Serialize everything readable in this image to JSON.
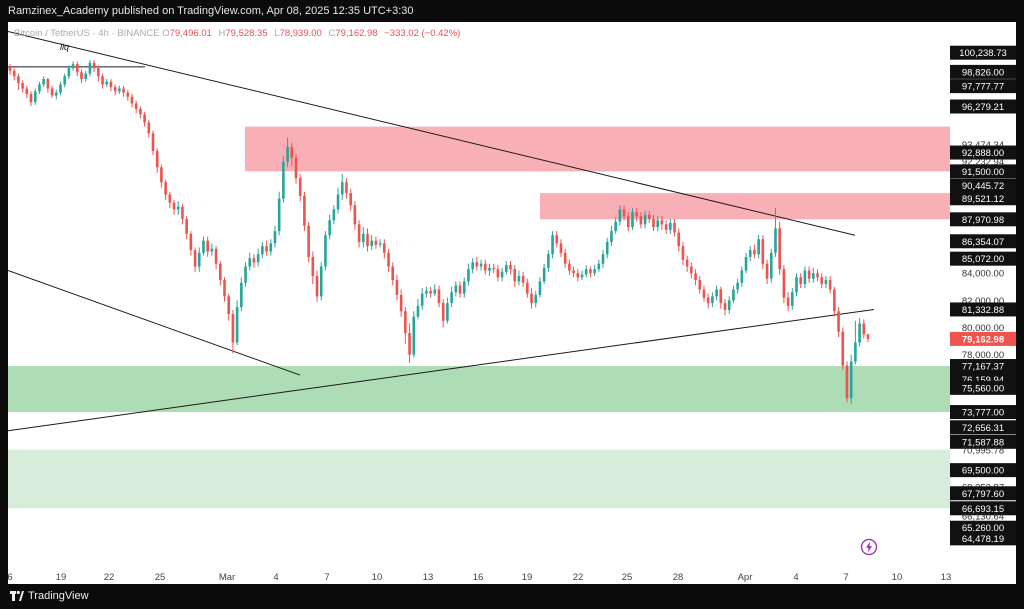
{
  "publisher_line": "Ramzinex_Academy published on TradingView.com, Apr 08, 2025 12:35 UTC+3:30",
  "symbol": {
    "name": "Bitcoin / TetherUS · 4h · BINANCE",
    "open_label": "O",
    "open": "79,496.01",
    "high_label": "H",
    "high": "79,528.35",
    "low_label": "L",
    "low": "78,939.00",
    "close_label": "C",
    "close": "79,162.98",
    "change": "−333.02 (−0.42%)"
  },
  "annotation_label": "liq",
  "brand": "TradingView",
  "icons": {
    "logo": "tradingview-logo-icon",
    "bolt": "lightning-bolt-icon"
  },
  "colors": {
    "up": "#26a69a",
    "down": "#ef5350",
    "supply_zone": "#f7a9b0",
    "demand_zone": "#a6d9af",
    "demand_zone_light": "#d4ecd6",
    "current_price_tag": "#ef5350",
    "axis_tag": "#111111"
  },
  "chart_data": {
    "type": "candlestick",
    "symbol": "BTCUSDT",
    "timeframe": "4h",
    "exchange": "BINANCE",
    "x_ticks": [
      "6",
      "19",
      "22",
      "25",
      "Mar",
      "4",
      "7",
      "10",
      "13",
      "16",
      "19",
      "22",
      "25",
      "28",
      "Apr",
      "4",
      "7",
      "10",
      "13"
    ],
    "y_ticks": [
      "100,238.73",
      "98,826.00",
      "97,777.77",
      "96,279.21",
      "93,474.34",
      "92,888.00",
      "92,232.94",
      "91,500.00",
      "90,445.72",
      "89,521.12",
      "87,970.98",
      "86,354.07",
      "85,072.00",
      "84,000.00",
      "82,000.00",
      "81,332.88",
      "80,000.00",
      "79,162.98",
      "78,000.00",
      "77,167.37",
      "76,159.94",
      "75,560.00",
      "73,777.00",
      "72,656.31",
      "71,587.88",
      "70,995.78",
      "69,500.00",
      "68,252.87",
      "67,797.60",
      "66,693.15",
      "66,130.64",
      "65,260.00",
      "64,478.19"
    ],
    "tagged_levels": [
      100238.73,
      98826.0,
      97777.77,
      96279.21,
      92888.0,
      91500.0,
      90445.72,
      89521.12,
      87970.98,
      86354.07,
      85072.0,
      81332.88,
      77167.37,
      76159.94,
      75560.0,
      73777.0,
      72656.31,
      71587.88,
      69500.0,
      67797.6,
      66693.15,
      65260.0,
      64478.19
    ],
    "current_price": 79162.98,
    "ylim": [
      62000,
      102500
    ],
    "zones": [
      {
        "kind": "supply",
        "from": 91500,
        "to": 94800
      },
      {
        "kind": "supply",
        "from": 87970.98,
        "to": 89900
      },
      {
        "kind": "demand",
        "from": 73777,
        "to": 77167.37
      },
      {
        "kind": "demand-light",
        "from": 66693.15,
        "to": 70995.78
      }
    ],
    "trendlines": [
      {
        "x1": 0,
        "y1": 101800,
        "x2": 847,
        "y2": 86800
      },
      {
        "x1": 0,
        "y1": 84200,
        "x2": 292,
        "y2": 76500
      },
      {
        "x1": 0,
        "y1": 72400,
        "x2": 866,
        "y2": 81332.88
      }
    ],
    "annotation_line": {
      "x1": 0,
      "x2": 137,
      "y": 99200
    },
    "candles": [
      [
        99200,
        98900,
        99400,
        98600
      ],
      [
        98900,
        98500,
        99100,
        98200
      ],
      [
        98500,
        98000,
        98700,
        97500
      ],
      [
        98000,
        97600,
        98200,
        97300
      ],
      [
        97600,
        97200,
        97800,
        96900
      ],
      [
        97200,
        96600,
        97400,
        96300
      ],
      [
        96600,
        97400,
        97600,
        96400
      ],
      [
        97400,
        97900,
        98100,
        97200
      ],
      [
        97900,
        98300,
        98500,
        97700
      ],
      [
        98300,
        97600,
        98400,
        97300
      ],
      [
        97600,
        97100,
        97800,
        96900
      ],
      [
        97100,
        97300,
        97500,
        96800
      ],
      [
        97300,
        97900,
        98100,
        97100
      ],
      [
        97900,
        98500,
        98700,
        97700
      ],
      [
        98500,
        99100,
        99300,
        98300
      ],
      [
        99100,
        99400,
        99600,
        98900
      ],
      [
        99400,
        98800,
        99600,
        98500
      ],
      [
        98800,
        98300,
        99000,
        98000
      ],
      [
        98300,
        98700,
        98900,
        98100
      ],
      [
        98700,
        99500,
        99700,
        98500
      ],
      [
        99500,
        99100,
        99700,
        98800
      ],
      [
        99100,
        98500,
        99300,
        98100
      ],
      [
        98500,
        97900,
        98700,
        97600
      ],
      [
        97900,
        98100,
        98300,
        97700
      ],
      [
        98100,
        97700,
        98300,
        97400
      ],
      [
        97700,
        97400,
        97900,
        97100
      ],
      [
        97400,
        97600,
        97800,
        97200
      ],
      [
        97600,
        97300,
        97800,
        97000
      ],
      [
        97300,
        97000,
        97500,
        96700
      ],
      [
        97000,
        96500,
        97200,
        96200
      ],
      [
        96500,
        96100,
        96700,
        95800
      ],
      [
        96100,
        95700,
        96300,
        95400
      ],
      [
        95700,
        95100,
        95900,
        94800
      ],
      [
        95100,
        94300,
        95300,
        94000
      ],
      [
        94300,
        93000,
        94500,
        92700
      ],
      [
        93000,
        91800,
        93200,
        91400
      ],
      [
        91800,
        90700,
        92000,
        90300
      ],
      [
        90700,
        89800,
        90900,
        89400
      ],
      [
        89800,
        89200,
        90000,
        88800
      ],
      [
        89200,
        88700,
        89400,
        88300
      ],
      [
        88700,
        88900,
        89300,
        88300
      ],
      [
        88900,
        88000,
        89100,
        87600
      ],
      [
        88000,
        86900,
        88200,
        86500
      ],
      [
        86900,
        85700,
        87100,
        85300
      ],
      [
        85700,
        84500,
        85900,
        84100
      ],
      [
        84500,
        85500,
        85900,
        84100
      ],
      [
        85500,
        86400,
        86700,
        85300
      ],
      [
        86400,
        85600,
        86700,
        85200
      ],
      [
        85600,
        85800,
        86200,
        85300
      ],
      [
        85800,
        84700,
        86000,
        84300
      ],
      [
        84700,
        83500,
        84900,
        83100
      ],
      [
        83500,
        82300,
        83700,
        81900
      ],
      [
        82300,
        81000,
        82500,
        80500
      ],
      [
        81000,
        78900,
        81300,
        78100
      ],
      [
        78900,
        81500,
        82000,
        78700
      ],
      [
        81500,
        83300,
        83700,
        81200
      ],
      [
        83300,
        84500,
        84800,
        83000
      ],
      [
        84500,
        85100,
        85500,
        84200
      ],
      [
        85100,
        84800,
        85400,
        84400
      ],
      [
        84800,
        85400,
        85800,
        84500
      ],
      [
        85400,
        86000,
        86300,
        85100
      ],
      [
        86000,
        85600,
        86400,
        85300
      ],
      [
        85600,
        86200,
        86500,
        85300
      ],
      [
        86200,
        87100,
        87500,
        85900
      ],
      [
        87100,
        89500,
        90000,
        86800
      ],
      [
        89500,
        92200,
        92600,
        89200
      ],
      [
        92200,
        93300,
        94000,
        91800
      ],
      [
        93300,
        92500,
        93600,
        91900
      ],
      [
        92500,
        91000,
        92800,
        90600
      ],
      [
        91000,
        89700,
        91300,
        89300
      ],
      [
        89700,
        87500,
        90000,
        87100
      ],
      [
        87500,
        85200,
        87800,
        84800
      ],
      [
        85200,
        83800,
        85600,
        83200
      ],
      [
        83800,
        82300,
        84200,
        81900
      ],
      [
        82300,
        84500,
        84800,
        82000
      ],
      [
        84500,
        86800,
        87100,
        84200
      ],
      [
        86800,
        87900,
        88300,
        86500
      ],
      [
        87900,
        88700,
        89000,
        87600
      ],
      [
        88700,
        89800,
        90300,
        88400
      ],
      [
        89800,
        90700,
        91300,
        89400
      ],
      [
        90700,
        89900,
        91000,
        89500
      ],
      [
        89900,
        89000,
        90200,
        88600
      ],
      [
        89000,
        87600,
        89300,
        87200
      ],
      [
        87600,
        86300,
        87900,
        85900
      ],
      [
        86300,
        86900,
        87400,
        85900
      ],
      [
        86900,
        86000,
        87300,
        85600
      ],
      [
        86000,
        86400,
        86800,
        85700
      ],
      [
        86400,
        86100,
        86700,
        85800
      ],
      [
        86100,
        86200,
        86500,
        85900
      ],
      [
        86200,
        85500,
        86500,
        85100
      ],
      [
        85500,
        84500,
        85800,
        84100
      ],
      [
        84500,
        83500,
        84800,
        83100
      ],
      [
        83500,
        82400,
        83900,
        82000
      ],
      [
        82400,
        81200,
        82800,
        80800
      ],
      [
        81200,
        79600,
        81500,
        78800
      ],
      [
        79600,
        78000,
        80300,
        77400
      ],
      [
        78000,
        80800,
        81200,
        77800
      ],
      [
        80800,
        81600,
        82100,
        80600
      ],
      [
        81600,
        82500,
        82900,
        81300
      ],
      [
        82500,
        82700,
        83000,
        82200
      ],
      [
        82700,
        82500,
        83000,
        82200
      ],
      [
        82500,
        82800,
        83200,
        82300
      ],
      [
        82800,
        81800,
        83100,
        81500
      ],
      [
        81800,
        80500,
        82100,
        80000
      ],
      [
        80500,
        81800,
        82200,
        80300
      ],
      [
        81800,
        82600,
        83000,
        81500
      ],
      [
        82600,
        83100,
        83400,
        82300
      ],
      [
        83100,
        82500,
        83400,
        82200
      ],
      [
        82500,
        83400,
        83700,
        82200
      ],
      [
        83400,
        84300,
        84700,
        83100
      ],
      [
        84300,
        84800,
        85100,
        84000
      ],
      [
        84800,
        84500,
        85200,
        84200
      ],
      [
        84500,
        84700,
        85000,
        84200
      ],
      [
        84700,
        84200,
        85000,
        83900
      ],
      [
        84200,
        84400,
        84700,
        83800
      ],
      [
        84400,
        84300,
        84700,
        84000
      ],
      [
        84300,
        83700,
        84600,
        83400
      ],
      [
        83700,
        84100,
        84400,
        83400
      ],
      [
        84100,
        84600,
        84900,
        83900
      ],
      [
        84600,
        84300,
        84900,
        83900
      ],
      [
        84300,
        83400,
        84600,
        83000
      ],
      [
        83400,
        83800,
        84200,
        83100
      ],
      [
        83800,
        83300,
        84100,
        83000
      ],
      [
        83300,
        82500,
        83600,
        82200
      ],
      [
        82500,
        81800,
        82900,
        81400
      ],
      [
        81800,
        82400,
        82700,
        81500
      ],
      [
        82400,
        83400,
        83700,
        82200
      ],
      [
        83400,
        84400,
        84700,
        83200
      ],
      [
        84400,
        85400,
        85700,
        84100
      ],
      [
        85400,
        86800,
        87100,
        85100
      ],
      [
        86800,
        86200,
        87100,
        85900
      ],
      [
        86200,
        85500,
        86500,
        85200
      ],
      [
        85500,
        84700,
        85800,
        84400
      ],
      [
        84700,
        84200,
        85000,
        83900
      ],
      [
        84200,
        84000,
        84500,
        83700
      ],
      [
        84000,
        83700,
        84300,
        83400
      ],
      [
        83700,
        83900,
        84200,
        83500
      ],
      [
        83900,
        84300,
        84600,
        83700
      ],
      [
        84300,
        84000,
        84500,
        83700
      ],
      [
        84000,
        84300,
        84600,
        83800
      ],
      [
        84300,
        84700,
        85000,
        84100
      ],
      [
        84700,
        85400,
        85700,
        84400
      ],
      [
        85400,
        86300,
        86600,
        85100
      ],
      [
        86300,
        87100,
        87500,
        86000
      ],
      [
        87100,
        87800,
        88100,
        86900
      ],
      [
        87800,
        88700,
        89000,
        87500
      ],
      [
        88700,
        88200,
        89000,
        87900
      ],
      [
        88200,
        87400,
        88500,
        87100
      ],
      [
        87400,
        88500,
        88800,
        87200
      ],
      [
        88500,
        88200,
        88800,
        87800
      ],
      [
        88200,
        87600,
        88500,
        87300
      ],
      [
        87600,
        88300,
        88600,
        87300
      ],
      [
        88300,
        88000,
        88600,
        87700
      ],
      [
        88000,
        87400,
        88300,
        87100
      ],
      [
        87400,
        87900,
        88200,
        87100
      ],
      [
        87900,
        87600,
        88200,
        87200
      ],
      [
        87600,
        87200,
        87900,
        86900
      ],
      [
        87200,
        87700,
        88000,
        86900
      ],
      [
        87700,
        87000,
        88000,
        86700
      ],
      [
        87000,
        86000,
        87300,
        85600
      ],
      [
        86000,
        85000,
        86300,
        84600
      ],
      [
        85000,
        84500,
        85300,
        84100
      ],
      [
        84500,
        84000,
        84800,
        83600
      ],
      [
        84000,
        83500,
        84300,
        83100
      ],
      [
        83500,
        82800,
        83800,
        82500
      ],
      [
        82800,
        82200,
        83100,
        81900
      ],
      [
        82200,
        81800,
        82500,
        81400
      ],
      [
        81800,
        82300,
        82600,
        81500
      ],
      [
        82300,
        82800,
        83100,
        82000
      ],
      [
        82800,
        81800,
        83000,
        81400
      ],
      [
        81800,
        81300,
        82100,
        80900
      ],
      [
        81300,
        82000,
        82300,
        81000
      ],
      [
        82000,
        82800,
        83100,
        81800
      ],
      [
        82800,
        83300,
        83600,
        82500
      ],
      [
        83300,
        84200,
        84500,
        83000
      ],
      [
        84200,
        85200,
        85500,
        84000
      ],
      [
        85200,
        85700,
        86000,
        84900
      ],
      [
        85700,
        85400,
        86100,
        85100
      ],
      [
        85400,
        86500,
        86800,
        85100
      ],
      [
        86500,
        84700,
        86800,
        84300
      ],
      [
        84700,
        83600,
        85000,
        83200
      ],
      [
        83600,
        85500,
        85800,
        83300
      ],
      [
        85500,
        87300,
        88800,
        85200
      ],
      [
        87300,
        84300,
        87800,
        83900
      ],
      [
        84300,
        82200,
        84600,
        81800
      ],
      [
        82200,
        81600,
        82600,
        81200
      ],
      [
        81600,
        82600,
        82900,
        81300
      ],
      [
        82600,
        83700,
        84000,
        82300
      ],
      [
        83700,
        83200,
        84000,
        82900
      ],
      [
        83200,
        84200,
        84500,
        82900
      ],
      [
        84200,
        83600,
        84500,
        83300
      ],
      [
        83600,
        84000,
        84400,
        83300
      ],
      [
        84000,
        83700,
        84300,
        83400
      ],
      [
        83700,
        83200,
        84000,
        82900
      ],
      [
        83200,
        83500,
        83800,
        82900
      ],
      [
        83500,
        82800,
        83800,
        82500
      ],
      [
        82800,
        81200,
        83000,
        80800
      ],
      [
        81200,
        79700,
        81500,
        79300
      ],
      [
        79700,
        77200,
        80000,
        76900
      ],
      [
        77200,
        74800,
        77500,
        74500
      ],
      [
        74800,
        77500,
        78000,
        74400
      ],
      [
        77500,
        78900,
        80500,
        77300
      ],
      [
        78900,
        80300,
        80700,
        78600
      ],
      [
        80300,
        79500,
        80600,
        79200
      ],
      [
        79500,
        79163,
        79528,
        78939
      ]
    ]
  }
}
